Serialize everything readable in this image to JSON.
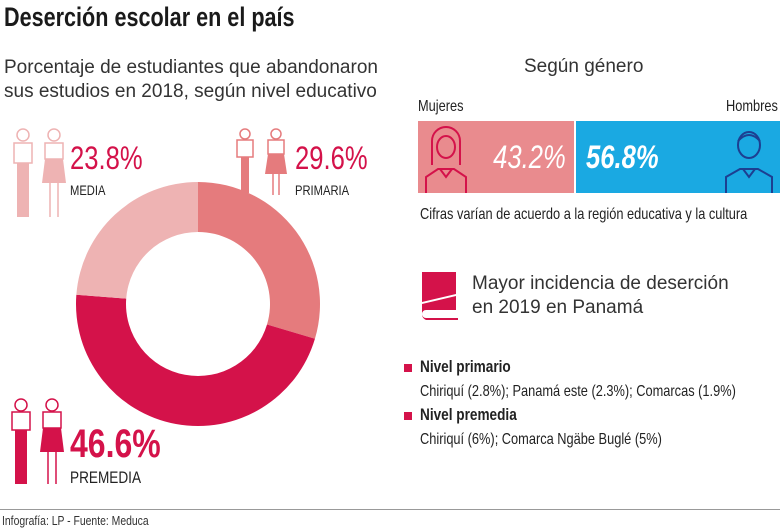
{
  "title": "Deserción escolar en el país",
  "subtitle": [
    "Porcentaje de estudiantes que abandonaron",
    "sus estudios en 2018, según nivel educativo"
  ],
  "chart_data": {
    "type": "pie",
    "donut": true,
    "start": "top, clockwise",
    "categories": [
      "PRIMARIA",
      "PREMEDIA",
      "MEDIA"
    ],
    "values": [
      29.6,
      46.6,
      23.8
    ],
    "labels": [
      "29.6%",
      "46.6%",
      "23.8%"
    ],
    "colors": [
      "#e57b7d",
      "#d4124a",
      "#eeb3b3"
    ]
  },
  "gender": {
    "title": "Según género",
    "women_label": "Mujeres",
    "men_label": "Hombres",
    "women_value": "43.2%",
    "men_value": "56.8%",
    "women_share": 43.2,
    "men_share": 56.8,
    "women_color": "#e98b8e",
    "men_color": "#1aa9e2",
    "caption": "Cifras varían de acuerdo a la región educativa y la cultura"
  },
  "incidence": {
    "title": [
      "Mayor incidencia de deserción",
      "en 2019 en Panamá"
    ],
    "items": [
      {
        "heading": "Nivel primario",
        "text": "Chiriquí (2.8%); Panamá este (2.3%); Comarcas (1.9%)"
      },
      {
        "heading": "Nivel premedia",
        "text": "Chiriquí (6%); Comarca Ngäbe Buglé (5%)"
      }
    ]
  },
  "footer": "Infografía: LP - Fuente: Meduca"
}
